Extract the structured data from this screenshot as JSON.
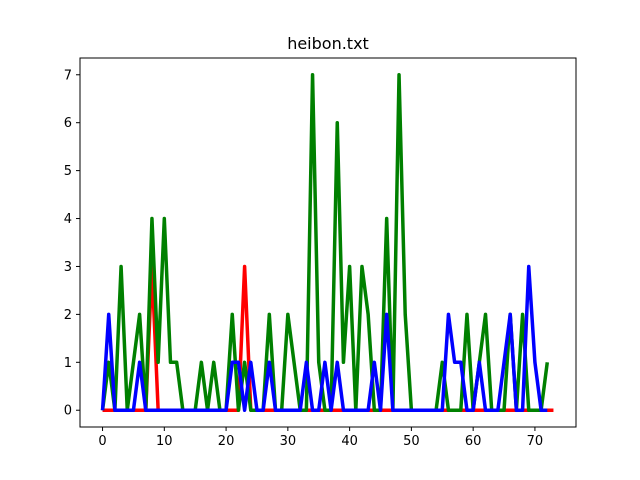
{
  "chart_data": {
    "type": "line",
    "title": "heibon.txt",
    "xlabel": "",
    "ylabel": "",
    "xlim": [
      -3.65,
      76.65
    ],
    "ylim": [
      -0.35,
      7.35
    ],
    "xticks": [
      0,
      10,
      20,
      30,
      40,
      50,
      60,
      70
    ],
    "yticks": [
      0,
      1,
      2,
      3,
      4,
      5,
      6,
      7
    ],
    "grid": false,
    "legend": "none",
    "series": [
      {
        "color": "#ff0000",
        "x": [
          0,
          1,
          2,
          3,
          4,
          5,
          6,
          7,
          8,
          9,
          10,
          11,
          12,
          13,
          14,
          15,
          16,
          17,
          18,
          19,
          20,
          21,
          22,
          23,
          24,
          25,
          26,
          27,
          28,
          29,
          30,
          31,
          32,
          33,
          34,
          35,
          36,
          37,
          38,
          39,
          40,
          41,
          42,
          43,
          44,
          45,
          46,
          47,
          48,
          49,
          50,
          51,
          52,
          53,
          54,
          55,
          56,
          57,
          58,
          59,
          60,
          61,
          62,
          63,
          64,
          65,
          66,
          67,
          68,
          69,
          70,
          71,
          72,
          73
        ],
        "values": [
          0,
          0,
          0,
          0,
          0,
          0,
          0,
          0,
          3,
          0,
          0,
          0,
          0,
          0,
          0,
          0,
          0,
          0,
          0,
          0,
          0,
          0,
          0,
          3,
          0,
          0,
          0,
          0,
          0,
          0,
          0,
          0,
          0,
          0,
          0,
          0,
          0,
          0,
          0,
          0,
          0,
          0,
          0,
          0,
          0,
          0,
          0,
          0,
          0,
          0,
          0,
          0,
          0,
          0,
          0,
          0,
          0,
          0,
          0,
          0,
          0,
          0,
          0,
          0,
          0,
          0,
          0,
          0,
          0,
          0,
          0,
          0,
          0,
          0
        ]
      },
      {
        "color": "#008000",
        "x": [
          0,
          1,
          2,
          3,
          4,
          5,
          6,
          7,
          8,
          9,
          10,
          11,
          12,
          13,
          14,
          15,
          16,
          17,
          18,
          19,
          20,
          21,
          22,
          23,
          24,
          25,
          26,
          27,
          28,
          29,
          30,
          31,
          32,
          33,
          34,
          35,
          36,
          37,
          38,
          39,
          40,
          41,
          42,
          43,
          44,
          45,
          46,
          47,
          48,
          49,
          50,
          51,
          52,
          53,
          54,
          55,
          56,
          57,
          58,
          59,
          60,
          61,
          62,
          63,
          64,
          65,
          66,
          67,
          68,
          69,
          70,
          71,
          72
        ],
        "values": [
          0,
          1,
          0,
          3,
          0,
          1,
          2,
          0,
          4,
          1,
          4,
          1,
          1,
          0,
          0,
          0,
          1,
          0,
          1,
          0,
          0,
          2,
          0,
          1,
          0,
          0,
          0,
          2,
          0,
          0,
          2,
          1,
          0,
          0,
          7,
          1,
          0,
          0,
          6,
          1,
          3,
          0,
          3,
          2,
          0,
          0,
          4,
          0,
          7,
          2,
          0,
          0,
          0,
          0,
          0,
          1,
          0,
          0,
          0,
          2,
          0,
          1,
          2,
          0,
          0,
          0,
          2,
          0,
          2,
          0,
          0,
          0,
          1
        ]
      },
      {
        "color": "#0000ff",
        "x": [
          0,
          1,
          2,
          3,
          4,
          5,
          6,
          7,
          8,
          9,
          10,
          11,
          12,
          13,
          14,
          15,
          16,
          17,
          18,
          19,
          20,
          21,
          22,
          23,
          24,
          25,
          26,
          27,
          28,
          29,
          30,
          31,
          32,
          33,
          34,
          35,
          36,
          37,
          38,
          39,
          40,
          41,
          42,
          43,
          44,
          45,
          46,
          47,
          48,
          49,
          50,
          51,
          52,
          53,
          54,
          55,
          56,
          57,
          58,
          59,
          60,
          61,
          62,
          63,
          64,
          65,
          66,
          67,
          68,
          69,
          70,
          71,
          72
        ],
        "values": [
          0,
          2,
          0,
          0,
          0,
          0,
          1,
          0,
          0,
          0,
          0,
          0,
          0,
          0,
          0,
          0,
          0,
          0,
          0,
          0,
          0,
          1,
          1,
          0,
          1,
          0,
          0,
          1,
          0,
          0,
          0,
          0,
          0,
          1,
          0,
          0,
          1,
          0,
          1,
          0,
          0,
          0,
          0,
          0,
          1,
          0,
          2,
          0,
          0,
          0,
          0,
          0,
          0,
          0,
          0,
          0,
          2,
          1,
          1,
          0,
          0,
          1,
          0,
          0,
          0,
          1,
          2,
          0,
          0,
          3,
          1,
          0,
          0
        ]
      }
    ]
  }
}
